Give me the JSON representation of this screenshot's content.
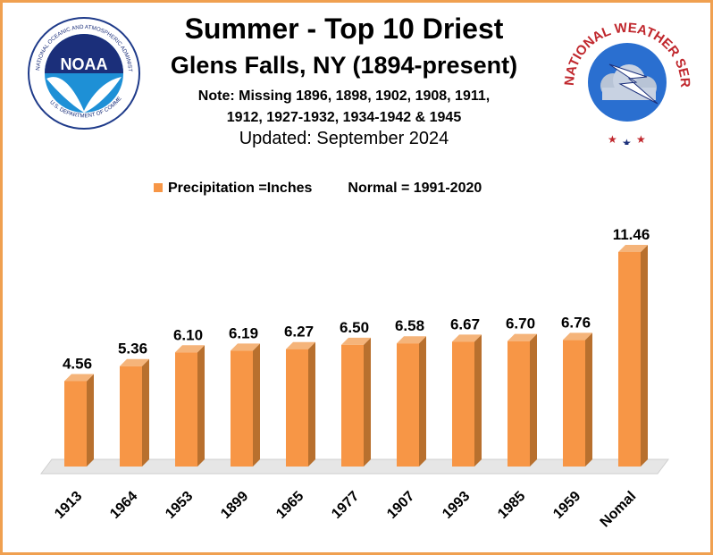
{
  "header": {
    "title": "Summer - Top 10 Driest",
    "subtitle": "Glens Falls, NY (1894-present)",
    "note_line1": "Note: Missing 1896, 1898, 1902, 1908, 1911,",
    "note_line2": "1912, 1927-1932, 1934-1942 & 1945",
    "updated": "Updated: September 2024"
  },
  "logos": {
    "noaa_text": "NOAA",
    "noaa_ring": "NATIONAL OCEANIC AND ATMOSPHERIC ADMINISTRATION",
    "noaa_bottom": "U.S. DEPARTMENT OF COMMERCE",
    "nws_ring": "NATIONAL WEATHER SERVICE"
  },
  "legend": {
    "series_label": "Precipitation =Inches",
    "normal_note": "Normal = 1991-2020"
  },
  "colors": {
    "bar_front": "#f79646",
    "bar_side": "#b8702e",
    "bar_top": "#f5b47a",
    "floor": "#e6e6e6",
    "frame": "#f0a050"
  },
  "chart_data": {
    "type": "bar",
    "categories": [
      "1913",
      "1964",
      "1953",
      "1899",
      "1965",
      "1977",
      "1907",
      "1993",
      "1985",
      "1959",
      "Nomal"
    ],
    "values": [
      4.56,
      5.36,
      6.1,
      6.19,
      6.27,
      6.5,
      6.58,
      6.67,
      6.7,
      6.76,
      11.46
    ],
    "data_labels": [
      "4.56",
      "5.36",
      "6.10",
      "6.19",
      "6.27",
      "6.50",
      "6.58",
      "6.67",
      "6.70",
      "6.76",
      "11.46"
    ],
    "grid": false,
    "legend_position": "top"
  }
}
